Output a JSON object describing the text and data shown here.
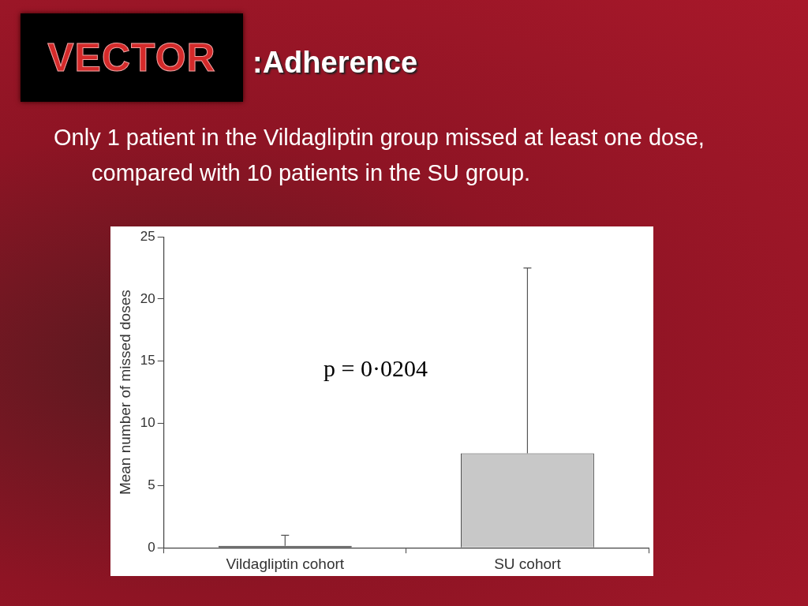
{
  "chart_data": {
    "type": "bar",
    "title": "VECTOR",
    "subtitle": ":Adherence",
    "categories": [
      "Vildagliptin cohort",
      "SU cohort"
    ],
    "values": [
      0.15,
      7.6
    ],
    "colors": [
      "#333333",
      "#c8c8c8"
    ],
    "errors": [
      [
        0.15,
        1.0
      ],
      [
        7.6,
        22.5
      ]
    ],
    "ylabel": "Mean number of missed doses",
    "ylim": [
      0,
      25
    ],
    "yticks": [
      0,
      5,
      10,
      15,
      20,
      25
    ],
    "grid": false,
    "legend": false,
    "annotations": [
      "Only 1 patient in the Vildagliptin group missed at least one dose, compared with 10 patients in the SU group.",
      "p = 0·0204"
    ]
  }
}
